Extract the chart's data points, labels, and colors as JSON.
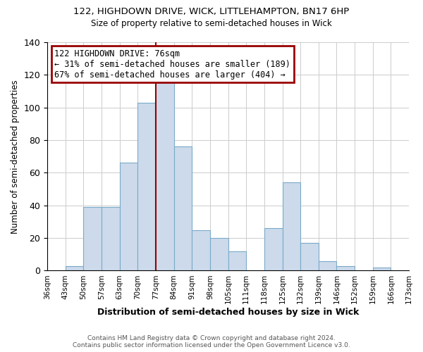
{
  "title1": "122, HIGHDOWN DRIVE, WICK, LITTLEHAMPTON, BN17 6HP",
  "title2": "Size of property relative to semi-detached houses in Wick",
  "xlabel": "Distribution of semi-detached houses by size in Wick",
  "ylabel": "Number of semi-detached properties",
  "bin_labels": [
    "36sqm",
    "43sqm",
    "50sqm",
    "57sqm",
    "63sqm",
    "70sqm",
    "77sqm",
    "84sqm",
    "91sqm",
    "98sqm",
    "105sqm",
    "111sqm",
    "118sqm",
    "125sqm",
    "132sqm",
    "139sqm",
    "146sqm",
    "152sqm",
    "159sqm",
    "166sqm",
    "173sqm"
  ],
  "bar_heights": [
    0,
    3,
    39,
    39,
    66,
    103,
    116,
    76,
    25,
    20,
    12,
    0,
    26,
    54,
    17,
    6,
    3,
    0,
    2,
    0
  ],
  "bar_color": "#ccdaeb",
  "bar_edge_color": "#7aaac8",
  "highlight_bar_index": 6,
  "highlight_line_color": "#990000",
  "annotation_title": "122 HIGHDOWN DRIVE: 76sqm",
  "annotation_line1": "← 31% of semi-detached houses are smaller (189)",
  "annotation_line2": "67% of semi-detached houses are larger (404) →",
  "annotation_box_color": "#ffffff",
  "annotation_box_edge": "#990000",
  "ylim": [
    0,
    140
  ],
  "yticks": [
    0,
    20,
    40,
    60,
    80,
    100,
    120,
    140
  ],
  "footer1": "Contains HM Land Registry data © Crown copyright and database right 2024.",
  "footer2": "Contains public sector information licensed under the Open Government Licence v3.0.",
  "background_color": "#ffffff",
  "grid_color": "#cccccc"
}
